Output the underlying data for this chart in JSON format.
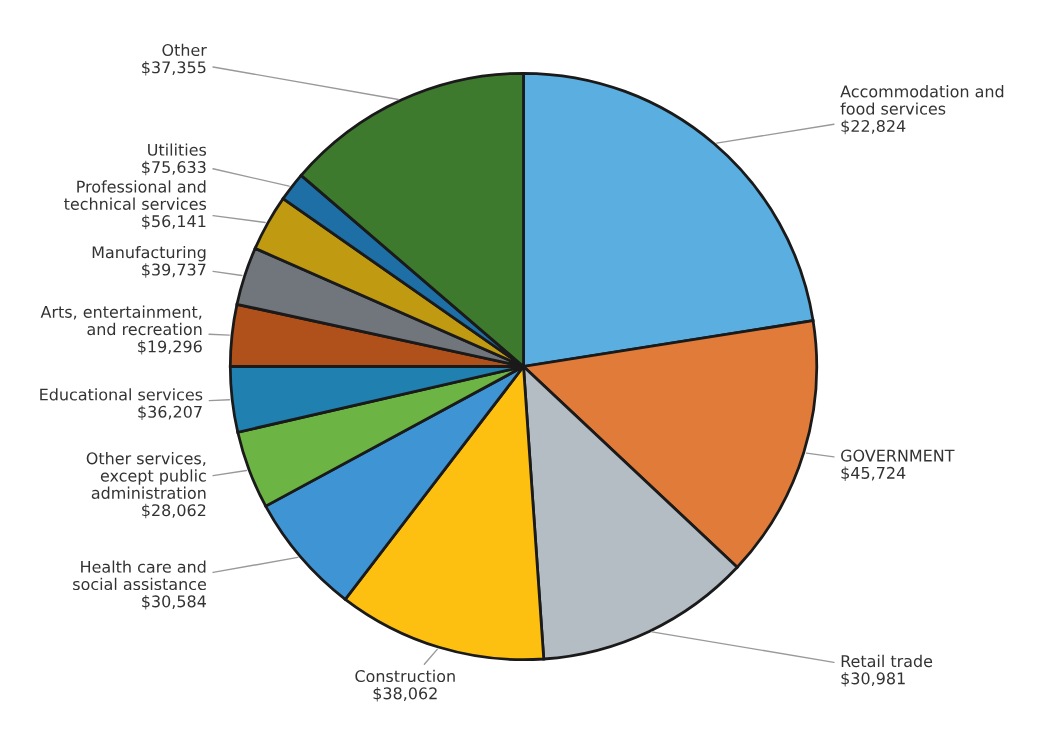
{
  "chart_data": {
    "type": "pie",
    "categories": [
      "Accommodation and food services",
      "GOVERNMENT",
      "Retail trade",
      "Construction",
      "Health care and social assistance",
      "Other services, except public administration",
      "Educational services",
      "Arts, entertainment, and recreation",
      "Manufacturing",
      "Professional and technical services",
      "Utilities",
      "Other"
    ],
    "values": [
      22.5,
      14.5,
      11.9,
      11.5,
      6.7,
      4.3,
      3.6,
      3.4,
      3.2,
      3.1,
      1.6,
      13.7
    ],
    "annotations": [
      "$22,824",
      "$45,724",
      "$30,981",
      "$38,062",
      "$30,584",
      "$28,062",
      "$36,207",
      "$19,296",
      "$39,737",
      "$56,141",
      "$75,633",
      "$37,355"
    ],
    "colors": [
      "#5aaee0",
      "#e07b39",
      "#b4bcc4",
      "#fdc010",
      "#3f94d4",
      "#6cb444",
      "#2080b0",
      "#b0501a",
      "#70767c",
      "#c09a10",
      "#1d6fa5",
      "#3e7a2e"
    ],
    "legend": false
  }
}
